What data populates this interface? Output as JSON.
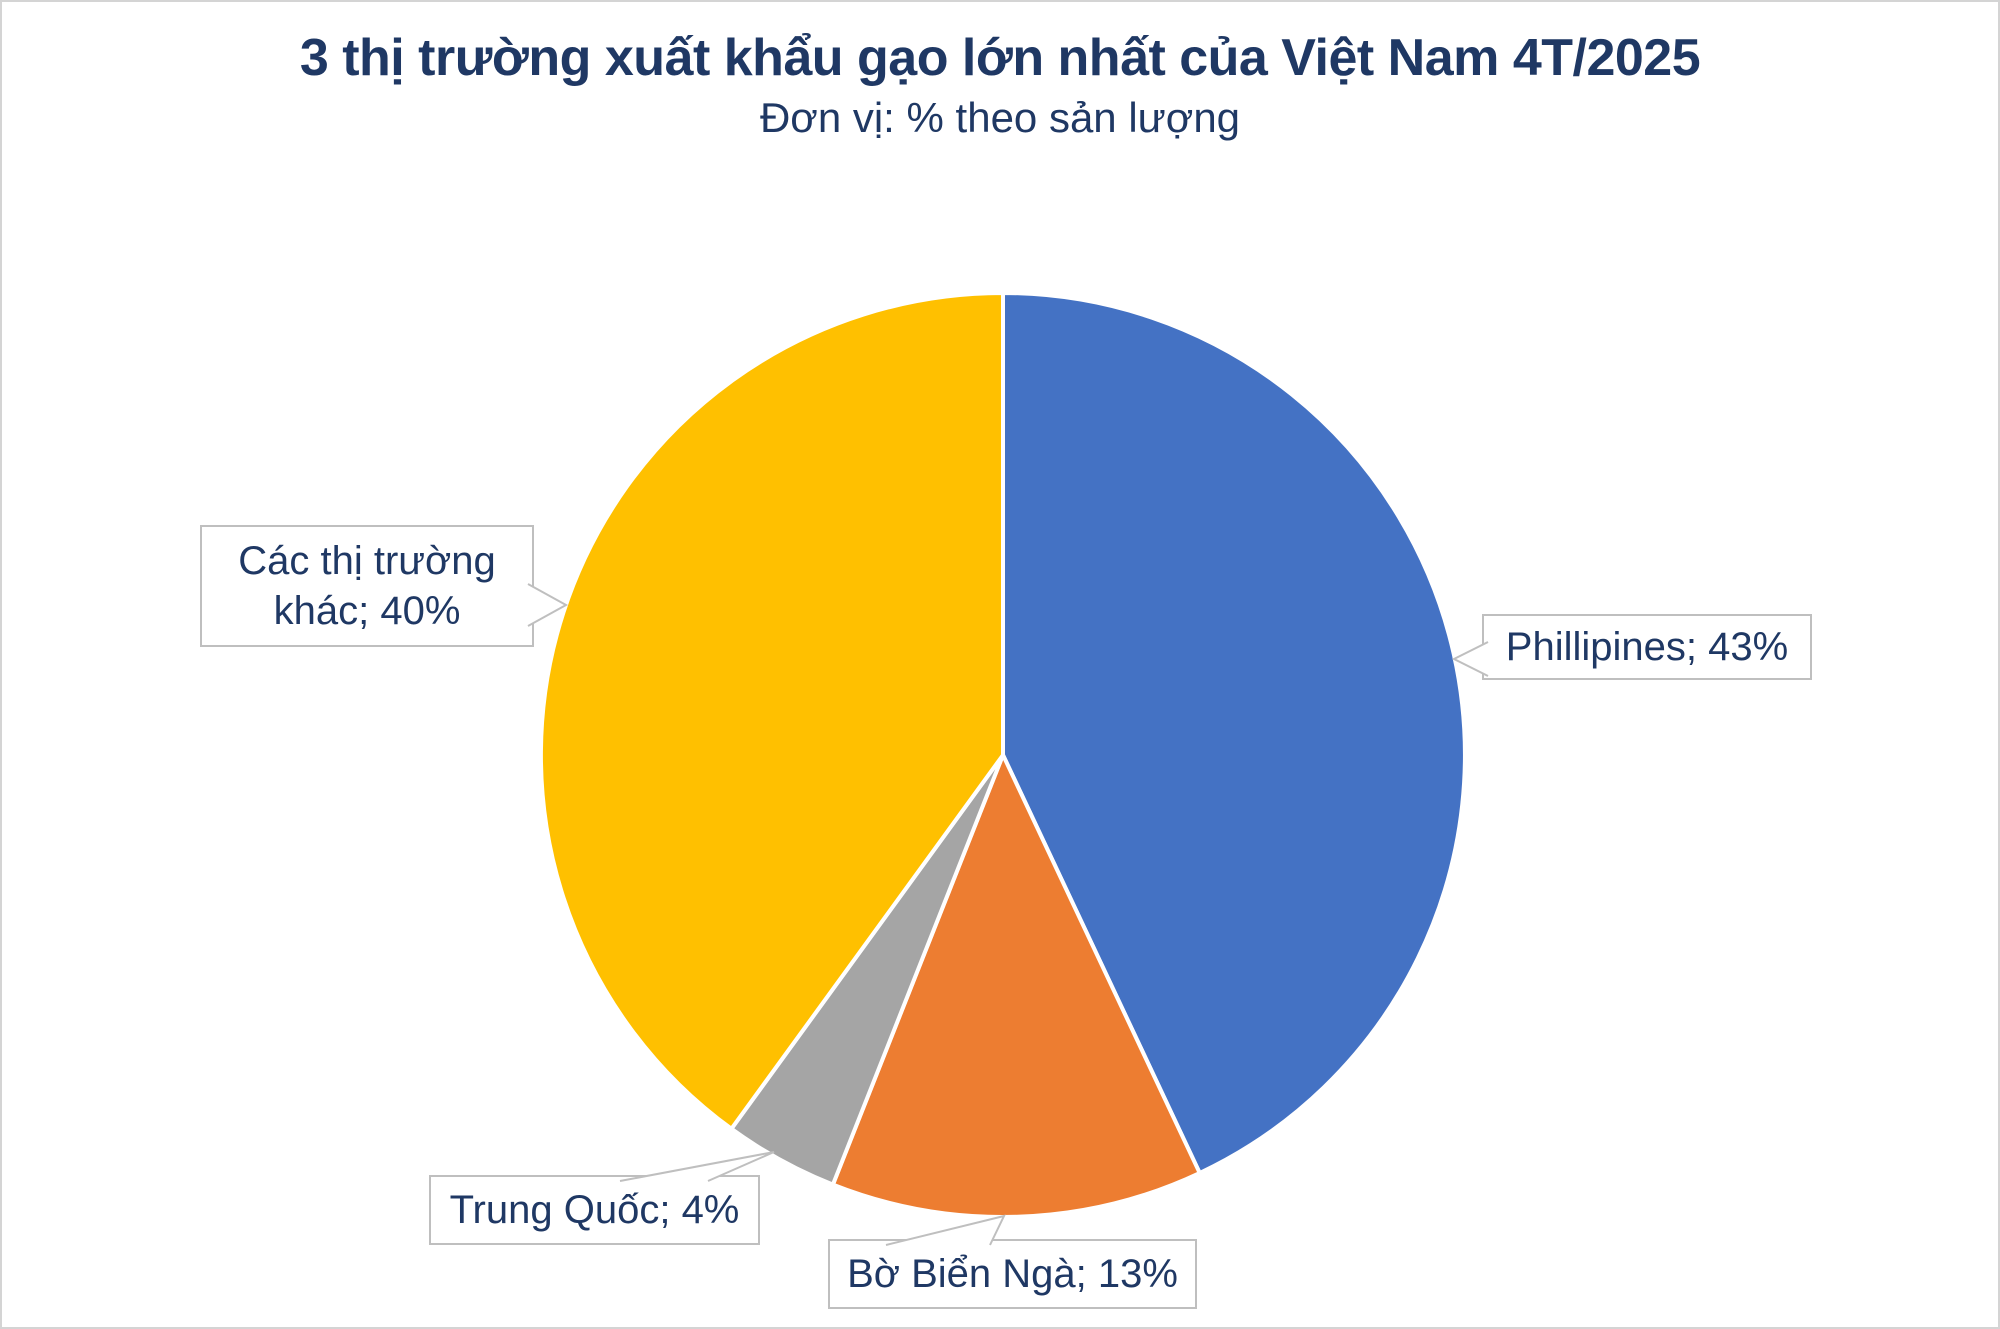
{
  "chart_data": {
    "type": "pie",
    "title": "3 thị trường xuất khẩu gạo lớn nhất của Việt Nam 4T/2025",
    "subtitle": "Đơn vị: % theo sản lượng",
    "unit": "% theo sản lượng",
    "start_angle_deg": 0,
    "direction": "clockwise",
    "legend_position": "none",
    "slice_border_color": "#FFFFFF",
    "text_color": "#1F3864",
    "callout_border_color": "#BFBFBF",
    "slices": [
      {
        "name": "Phillipines",
        "value": 43,
        "label": "Phillipines; 43%",
        "color": "#4472C4"
      },
      {
        "name": "Bờ Biển Ngà",
        "value": 13,
        "label": "Bờ Biển Ngà; 13%",
        "color": "#ED7D31"
      },
      {
        "name": "Trung Quốc",
        "value": 4,
        "label": "Trung Quốc; 4%",
        "color": "#A5A5A5"
      },
      {
        "name": "Các thị trường khác",
        "value": 40,
        "label": "Các thị trường khác; 40%",
        "color": "#FFC000"
      }
    ]
  }
}
